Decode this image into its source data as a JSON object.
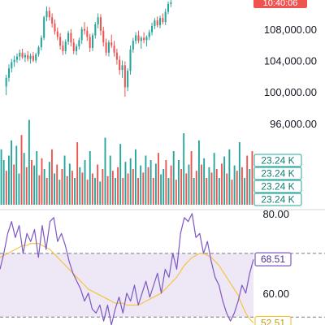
{
  "clock_badge": "10:40:06",
  "chart_data": [
    {
      "type": "candlestick",
      "panel": "price",
      "y_ticks": [
        "108,000.00",
        "104,000.00",
        "100,000.00",
        "96,000.00"
      ],
      "y_tick_values": [
        108000,
        104000,
        100000,
        96000
      ],
      "ylim": [
        93200,
        111800
      ],
      "candles": [
        [
          100800,
          102300,
          99700,
          101900
        ],
        [
          101900,
          103600,
          101400,
          103100
        ],
        [
          103100,
          104300,
          102600,
          103900
        ],
        [
          103900,
          104700,
          103300,
          104200
        ],
        [
          104200,
          105000,
          103800,
          104600
        ],
        [
          104600,
          105500,
          104100,
          105100
        ],
        [
          105100,
          105600,
          104300,
          104500
        ],
        [
          104500,
          105100,
          103900,
          104800
        ],
        [
          104800,
          105300,
          104000,
          104300
        ],
        [
          104300,
          105000,
          103700,
          104700
        ],
        [
          104700,
          105200,
          103900,
          104100
        ],
        [
          104100,
          105100,
          103800,
          104900
        ],
        [
          104900,
          106000,
          104600,
          105800
        ],
        [
          105800,
          107300,
          105400,
          107000
        ],
        [
          107000,
          109800,
          106700,
          109600
        ],
        [
          109600,
          111000,
          109100,
          110400
        ],
        [
          110400,
          110900,
          109200,
          109600
        ],
        [
          109600,
          110100,
          108300,
          108800
        ],
        [
          108800,
          109300,
          107400,
          107800
        ],
        [
          107800,
          108300,
          106700,
          107100
        ],
        [
          107100,
          107600,
          105500,
          106000
        ],
        [
          106000,
          106600,
          104800,
          105300
        ],
        [
          105300,
          106800,
          104900,
          106500
        ],
        [
          106500,
          107900,
          106100,
          107600
        ],
        [
          107600,
          108100,
          105900,
          106400
        ],
        [
          106400,
          106900,
          104900,
          105300
        ],
        [
          105300,
          106200,
          104800,
          105900
        ],
        [
          105900,
          107000,
          105500,
          106700
        ],
        [
          106700,
          108400,
          106200,
          108100
        ],
        [
          108100,
          109000,
          107400,
          107900
        ],
        [
          107900,
          108400,
          106600,
          107100
        ],
        [
          107100,
          107500,
          105200,
          105700
        ],
        [
          105700,
          107600,
          105300,
          107300
        ],
        [
          107300,
          109000,
          106900,
          108700
        ],
        [
          108700,
          110100,
          108200,
          109600
        ],
        [
          109600,
          110000,
          107300,
          107900
        ],
        [
          107900,
          108400,
          105900,
          106400
        ],
        [
          106400,
          106900,
          104700,
          105100
        ],
        [
          105100,
          106700,
          104600,
          106400
        ],
        [
          106400,
          107400,
          105700,
          106000
        ],
        [
          106000,
          106600,
          104600,
          105100
        ],
        [
          105100,
          105600,
          103600,
          104200
        ],
        [
          104200,
          104700,
          102300,
          102900
        ],
        [
          102900,
          104100,
          101900,
          103500
        ],
        [
          103500,
          104000,
          99500,
          100700
        ],
        [
          100700,
          103100,
          100200,
          102800
        ],
        [
          102800,
          106000,
          102300,
          105500
        ],
        [
          105500,
          107000,
          105100,
          106600
        ],
        [
          106600,
          107700,
          106200,
          107300
        ],
        [
          107300,
          107900,
          106300,
          106600
        ],
        [
          106600,
          107200,
          105600,
          107000
        ],
        [
          107000,
          107700,
          106300,
          106700
        ],
        [
          106700,
          107300,
          105900,
          107100
        ],
        [
          107100,
          108000,
          106700,
          107700
        ],
        [
          107700,
          108900,
          107300,
          108500
        ],
        [
          108500,
          109500,
          108100,
          109200
        ],
        [
          109200,
          109700,
          108300,
          108600
        ],
        [
          108600,
          109800,
          108200,
          109500
        ],
        [
          109500,
          110100,
          108700,
          109000
        ],
        [
          109000,
          110700,
          108600,
          110300
        ],
        [
          110300,
          111600,
          110000,
          111300
        ],
        [
          111300,
          111800,
          110900,
          111500
        ]
      ],
      "volume": [
        {
          "up": true,
          "v": 0.62
        },
        {
          "up": true,
          "v": 0.5
        },
        {
          "up": false,
          "v": 0.38
        },
        {
          "up": true,
          "v": 0.55
        },
        {
          "up": true,
          "v": 0.72
        },
        {
          "up": false,
          "v": 0.45
        },
        {
          "up": true,
          "v": 0.66
        },
        {
          "up": true,
          "v": 0.35
        },
        {
          "up": false,
          "v": 0.78
        },
        {
          "up": true,
          "v": 0.58
        },
        {
          "up": false,
          "v": 0.42
        },
        {
          "up": true,
          "v": 0.95
        },
        {
          "up": false,
          "v": 0.5
        },
        {
          "up": true,
          "v": 0.44
        },
        {
          "up": true,
          "v": 0.6
        },
        {
          "up": false,
          "v": 0.33
        },
        {
          "up": false,
          "v": 0.52
        },
        {
          "up": true,
          "v": 0.4
        },
        {
          "up": false,
          "v": 0.3
        },
        {
          "up": true,
          "v": 0.48
        },
        {
          "up": false,
          "v": 0.62
        },
        {
          "up": true,
          "v": 0.35
        },
        {
          "up": false,
          "v": 0.45
        },
        {
          "up": true,
          "v": 0.28
        },
        {
          "up": false,
          "v": 0.4
        },
        {
          "up": true,
          "v": 0.55
        },
        {
          "up": false,
          "v": 0.32
        },
        {
          "up": true,
          "v": 0.46
        },
        {
          "up": false,
          "v": 0.38
        },
        {
          "up": true,
          "v": 0.3
        },
        {
          "up": false,
          "v": 0.7
        },
        {
          "up": true,
          "v": 0.42
        },
        {
          "up": false,
          "v": 0.36
        },
        {
          "up": true,
          "v": 0.5
        },
        {
          "up": false,
          "v": 0.28
        },
        {
          "up": true,
          "v": 0.6
        },
        {
          "up": false,
          "v": 0.35
        },
        {
          "up": true,
          "v": 0.3
        },
        {
          "up": false,
          "v": 0.45
        },
        {
          "up": true,
          "v": 0.26
        },
        {
          "up": false,
          "v": 0.4
        },
        {
          "up": true,
          "v": 0.75
        },
        {
          "up": false,
          "v": 0.32
        },
        {
          "up": true,
          "v": 0.55
        },
        {
          "up": false,
          "v": 0.38
        },
        {
          "up": true,
          "v": 0.3
        },
        {
          "up": false,
          "v": 0.42
        },
        {
          "up": true,
          "v": 0.68
        },
        {
          "up": false,
          "v": 0.3
        },
        {
          "up": true,
          "v": 0.48
        },
        {
          "up": false,
          "v": 0.35
        },
        {
          "up": true,
          "v": 0.52
        },
        {
          "up": false,
          "v": 0.4
        },
        {
          "up": true,
          "v": 0.62
        },
        {
          "up": false,
          "v": 0.3
        },
        {
          "up": true,
          "v": 0.44
        },
        {
          "up": false,
          "v": 0.36
        },
        {
          "up": true,
          "v": 0.55
        },
        {
          "up": false,
          "v": 0.42
        },
        {
          "up": true,
          "v": 0.5
        },
        {
          "up": false,
          "v": 0.3
        },
        {
          "up": true,
          "v": 0.46
        },
        {
          "up": false,
          "v": 0.58
        },
        {
          "up": true,
          "v": 0.34
        },
        {
          "up": true,
          "v": 0.4
        },
        {
          "up": false,
          "v": 0.5
        },
        {
          "up": true,
          "v": 0.3
        },
        {
          "up": false,
          "v": 0.44
        },
        {
          "up": true,
          "v": 0.6
        },
        {
          "up": false,
          "v": 0.28
        },
        {
          "up": true,
          "v": 0.5
        },
        {
          "up": false,
          "v": 0.4
        },
        {
          "up": true,
          "v": 0.8
        },
        {
          "up": false,
          "v": 0.35
        },
        {
          "up": true,
          "v": 0.45
        },
        {
          "up": false,
          "v": 0.6
        },
        {
          "up": true,
          "v": 0.3
        },
        {
          "up": false,
          "v": 0.38
        },
        {
          "up": true,
          "v": 0.72
        },
        {
          "up": false,
          "v": 0.45
        },
        {
          "up": true,
          "v": 0.52
        },
        {
          "up": false,
          "v": 0.3
        },
        {
          "up": true,
          "v": 0.42
        },
        {
          "up": false,
          "v": 0.36
        },
        {
          "up": true,
          "v": 0.58
        },
        {
          "up": false,
          "v": 0.4
        },
        {
          "up": true,
          "v": 0.3
        },
        {
          "up": false,
          "v": 0.46
        },
        {
          "up": true,
          "v": 0.54
        },
        {
          "up": false,
          "v": 0.35
        },
        {
          "up": true,
          "v": 0.62
        },
        {
          "up": false,
          "v": 0.28
        },
        {
          "up": true,
          "v": 0.44
        },
        {
          "up": false,
          "v": 0.38
        },
        {
          "up": true,
          "v": 0.7
        },
        {
          "up": false,
          "v": 0.42
        },
        {
          "up": true,
          "v": 0.3
        },
        {
          "up": false,
          "v": 0.55
        },
        {
          "up": true,
          "v": 0.4
        },
        {
          "up": false,
          "v": 0.6
        }
      ],
      "volume_badges": [
        "23.24 K",
        "23.24 K",
        "23.24 K",
        "23.24 K"
      ]
    },
    {
      "type": "line",
      "panel": "oscillator",
      "y_ticks": [
        "80.00",
        "60.00"
      ],
      "y_tick_values": [
        80,
        60
      ],
      "ylim": [
        52,
        81
      ],
      "band": [
        70,
        54
      ],
      "series": [
        {
          "values": [
            66,
            70,
            75,
            78,
            74,
            77,
            70,
            75,
            73,
            76,
            69,
            77,
            71,
            78,
            79,
            73,
            75,
            72,
            68,
            65,
            63,
            61,
            58,
            60,
            56,
            55,
            57,
            53,
            57,
            52,
            56,
            59,
            55,
            60,
            58,
            62,
            57,
            60,
            63,
            59,
            62,
            65,
            60,
            66,
            64,
            70,
            66,
            75,
            79,
            78,
            80,
            74,
            75,
            70,
            73,
            68,
            64,
            62,
            58,
            55,
            53,
            55,
            58,
            62,
            60,
            65,
            68.51
          ]
        },
        {
          "values": [
            69,
            69.5,
            70,
            70.5,
            71,
            71.5,
            72,
            72,
            72.5,
            72.5,
            72.5,
            72,
            71.5,
            71,
            70,
            69,
            68,
            67,
            66,
            65,
            64,
            63,
            62,
            61,
            60.5,
            60,
            59.5,
            59,
            58.5,
            58,
            57.5,
            57.5,
            57.5,
            57,
            57,
            57,
            57,
            57.5,
            58,
            58.5,
            59,
            59.5,
            60,
            61,
            62,
            63,
            64,
            65.5,
            67,
            68,
            69,
            69.5,
            70,
            70,
            69.5,
            69,
            68,
            67,
            65.5,
            64,
            62.5,
            61,
            59.5,
            57,
            55,
            53.5,
            52.51
          ]
        }
      ],
      "badges": [
        "68.51",
        "52.51"
      ]
    }
  ],
  "colors": {
    "up": "#26a69a",
    "down": "#ef5350",
    "osc_line": "#7e57c2",
    "osc_signal": "#f5c542",
    "band_fill": "#ede7f6",
    "axis_text": "#131722",
    "badge_clock": "#ef5350"
  }
}
